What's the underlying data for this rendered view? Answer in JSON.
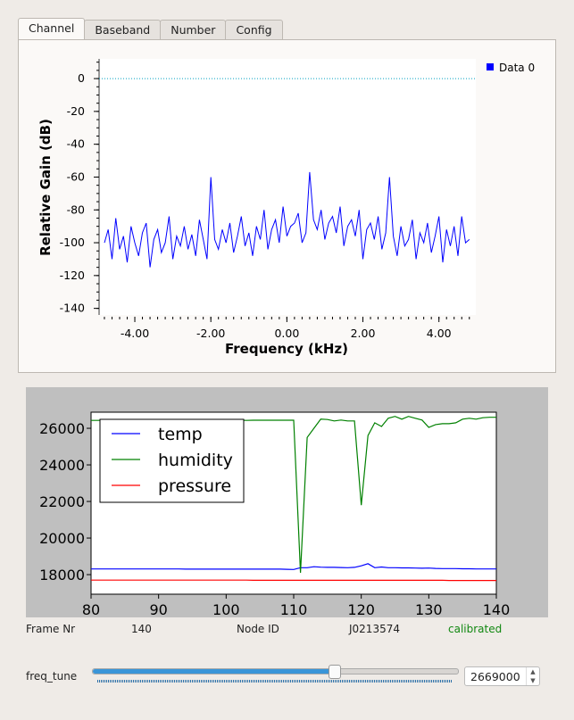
{
  "tabs": [
    {
      "label": "Channel",
      "active": true
    },
    {
      "label": "Baseband"
    },
    {
      "label": "Number"
    },
    {
      "label": "Config"
    }
  ],
  "chart_data": [
    {
      "type": "line",
      "xlabel": "Frequency (kHz)",
      "ylabel": "Relative Gain (dB)",
      "xlim": [
        -4.94,
        4.97
      ],
      "ylim": [
        -144,
        12
      ],
      "xticks": [
        "-4.00",
        "-2.00",
        "0.00",
        "2.00",
        "4.00"
      ],
      "yticks": [
        "0",
        "-20",
        "-40",
        "-60",
        "-80",
        "-100",
        "-120",
        "-140"
      ],
      "legend": "top-right",
      "series": [
        {
          "name": "Data 0",
          "color": "#0000ff",
          "x_start": -4.8,
          "x_step": 0.1,
          "values": [
            -100,
            -92,
            -110,
            -85,
            -104,
            -96,
            -112,
            -90,
            -100,
            -108,
            -94,
            -88,
            -115,
            -98,
            -92,
            -106,
            -100,
            -84,
            -110,
            -96,
            -102,
            -90,
            -104,
            -95,
            -108,
            -86,
            -98,
            -110,
            -60,
            -98,
            -104,
            -92,
            -100,
            -88,
            -106,
            -96,
            -84,
            -102,
            -94,
            -108,
            -90,
            -98,
            -80,
            -104,
            -92,
            -86,
            -100,
            -78,
            -96,
            -90,
            -88,
            -82,
            -100,
            -94,
            -57,
            -86,
            -92,
            -80,
            -98,
            -88,
            -84,
            -94,
            -78,
            -102,
            -90,
            -86,
            -96,
            -80,
            -110,
            -92,
            -88,
            -98,
            -84,
            -104,
            -94,
            -60,
            -96,
            -108,
            -90,
            -102,
            -98,
            -86,
            -110,
            -94,
            -100,
            -88,
            -106,
            -96,
            -84,
            -112,
            -92,
            -102,
            -90,
            -108,
            -84,
            -100,
            -98
          ]
        }
      ],
      "reference_line": {
        "y": 0,
        "color": "#00a0c0"
      }
    },
    {
      "type": "line",
      "xlim": [
        80,
        140
      ],
      "ylim": [
        16930,
        26880
      ],
      "xticks": [
        80,
        90,
        100,
        110,
        120,
        130,
        140
      ],
      "yticks": [
        18000,
        20000,
        22000,
        24000,
        26000
      ],
      "legend": "top-left",
      "x_start": 80,
      "x_step": 1,
      "series": [
        {
          "name": "temp",
          "color": "#0000ff",
          "values": [
            18310,
            18310,
            18310,
            18310,
            18310,
            18310,
            18310,
            18310,
            18310,
            18310,
            18310,
            18310,
            18310,
            18310,
            18300,
            18300,
            18300,
            18300,
            18300,
            18300,
            18300,
            18300,
            18300,
            18300,
            18300,
            18300,
            18300,
            18300,
            18300,
            18290,
            18280,
            18380,
            18380,
            18430,
            18410,
            18400,
            18400,
            18390,
            18380,
            18400,
            18480,
            18600,
            18380,
            18420,
            18380,
            18380,
            18370,
            18370,
            18360,
            18350,
            18360,
            18340,
            18330,
            18330,
            18330,
            18320,
            18320,
            18310,
            18310,
            18310,
            18310
          ]
        },
        {
          "name": "humidity",
          "color": "#008000",
          "values": [
            26430,
            26430,
            26440,
            26440,
            26440,
            26440,
            26440,
            26440,
            26440,
            26440,
            26440,
            26440,
            26440,
            26440,
            26440,
            26440,
            26440,
            26440,
            26440,
            26440,
            26440,
            26440,
            26440,
            26430,
            26440,
            26440,
            26440,
            26440,
            26440,
            26440,
            26440,
            18100,
            25500,
            26000,
            26500,
            26480,
            26400,
            26450,
            26400,
            26400,
            21800,
            25600,
            26300,
            26100,
            26550,
            26650,
            26500,
            26650,
            26550,
            26450,
            26050,
            26200,
            26250,
            26250,
            26300,
            26500,
            26550,
            26500,
            26580,
            26600,
            26600
          ]
        },
        {
          "name": "pressure",
          "color": "#ff0000",
          "values": [
            17700,
            17700,
            17700,
            17700,
            17700,
            17700,
            17700,
            17700,
            17700,
            17700,
            17700,
            17700,
            17700,
            17700,
            17700,
            17700,
            17700,
            17700,
            17700,
            17700,
            17700,
            17700,
            17700,
            17700,
            17690,
            17690,
            17690,
            17690,
            17690,
            17690,
            17690,
            17690,
            17690,
            17690,
            17690,
            17690,
            17690,
            17690,
            17690,
            17690,
            17690,
            17690,
            17690,
            17690,
            17690,
            17690,
            17690,
            17690,
            17690,
            17690,
            17690,
            17690,
            17690,
            17680,
            17680,
            17680,
            17680,
            17680,
            17680,
            17680,
            17680
          ]
        }
      ]
    }
  ],
  "status": {
    "frame_label": "Frame Nr",
    "frame_value": "140",
    "node_label": "Node ID",
    "node_value": "J0213574",
    "state": "calibrated",
    "state_color": "#118811"
  },
  "freq_tune": {
    "label": "freq_tune",
    "value": "2669000",
    "slider_fraction": 0.66
  }
}
